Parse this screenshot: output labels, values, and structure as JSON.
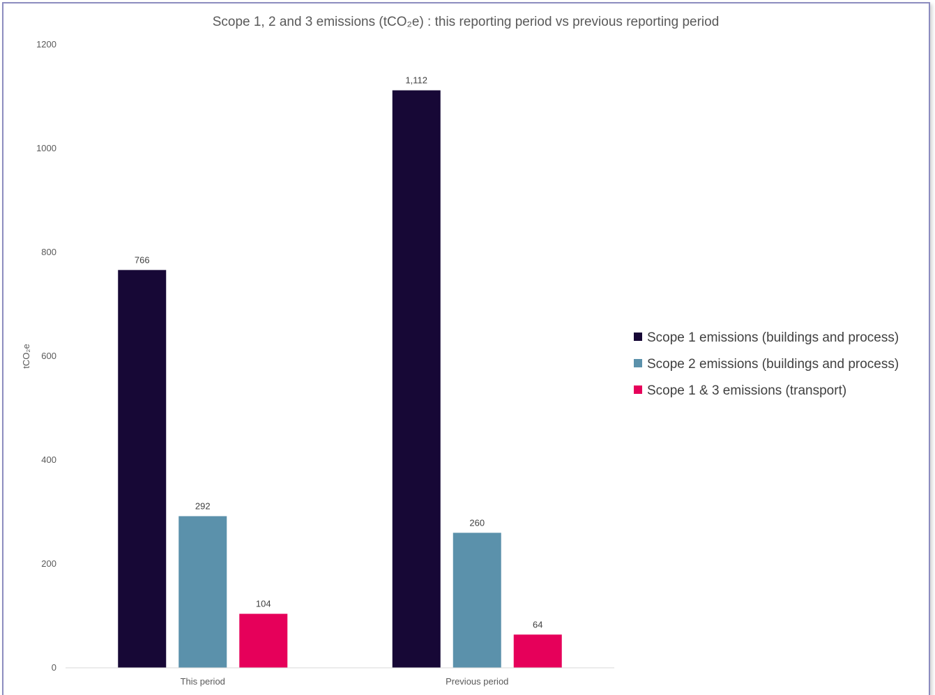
{
  "chart_data": {
    "type": "bar",
    "title": "Scope 1, 2 and 3 emissions (tCO₂e) : this reporting period vs previous reporting period",
    "ylabel": "tCO₂e",
    "xlabel": "",
    "categories": [
      "This period",
      "Previous period"
    ],
    "series": [
      {
        "name": "Scope 1 emissions (buildings and process)",
        "values": [
          766,
          1112
        ],
        "labels": [
          "766",
          "1,112"
        ],
        "color": "#170836"
      },
      {
        "name": "Scope 2 emissions (buildings and process)",
        "values": [
          292,
          260
        ],
        "labels": [
          "292",
          "260"
        ],
        "color": "#5b91ab"
      },
      {
        "name": "Scope 1 & 3 emissions (transport)",
        "values": [
          104,
          64
        ],
        "labels": [
          "104",
          "64"
        ],
        "color": "#e6005a"
      }
    ],
    "ylim": [
      0,
      1200
    ],
    "yticks": [
      0,
      200,
      400,
      600,
      800,
      1000,
      1200
    ],
    "grid": false,
    "legend": "right"
  }
}
